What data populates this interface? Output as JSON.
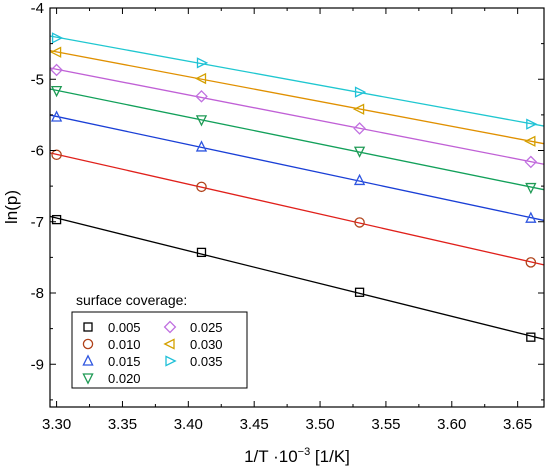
{
  "chart_data": {
    "type": "scatter",
    "xlabel_main": "1/T ·10",
    "xlabel_exp": "−3",
    "xlabel_unit": " [1/K]",
    "ylabel": "ln(p)",
    "xlim": [
      3.295,
      3.67
    ],
    "ylim": [
      -9.6,
      -4.0
    ],
    "x_ticks": [
      3.3,
      3.35,
      3.4,
      3.45,
      3.5,
      3.55,
      3.6,
      3.65
    ],
    "x_tick_labels": [
      "3.30",
      "3.35",
      "3.40",
      "3.45",
      "3.50",
      "3.55",
      "3.60",
      "3.65"
    ],
    "y_ticks": [
      -4,
      -5,
      -6,
      -7,
      -8,
      -9
    ],
    "y_tick_labels": [
      "-4",
      "-5",
      "-6",
      "-7",
      "-8",
      "-9"
    ],
    "grid": false,
    "legend": {
      "title": "surface coverage:",
      "placement": "bottom-left",
      "columns": 2
    },
    "x": [
      3.3,
      3.41,
      3.53,
      3.66
    ],
    "series": [
      {
        "name": "0.005",
        "marker": "square",
        "color": "#000000",
        "values": [
          -6.97,
          -7.43,
          -7.99,
          -8.62
        ]
      },
      {
        "name": "0.010",
        "marker": "circle",
        "color": "#e0201b",
        "marker_color": "#b0421a",
        "values": [
          -6.06,
          -6.51,
          -7.01,
          -7.57
        ]
      },
      {
        "name": "0.015",
        "marker": "triangle-up",
        "color": "#1a3fd6",
        "marker_color": "#2f56e0",
        "values": [
          -5.53,
          -5.95,
          -6.42,
          -6.95
        ]
      },
      {
        "name": "0.020",
        "marker": "triangle-down",
        "color": "#12a05a",
        "marker_color": "#1f9a55",
        "values": [
          -5.16,
          -5.57,
          -6.01,
          -6.52
        ]
      },
      {
        "name": "0.025",
        "marker": "diamond",
        "color": "#c060d6",
        "marker_color": "#c070e0",
        "values": [
          -4.87,
          -5.24,
          -5.69,
          -6.16
        ]
      },
      {
        "name": "0.030",
        "marker": "triangle-left",
        "color": "#e09000",
        "marker_color": "#d4a000",
        "values": [
          -4.62,
          -4.99,
          -5.42,
          -5.87
        ]
      },
      {
        "name": "0.035",
        "marker": "triangle-right",
        "color": "#1fc7d0",
        "marker_color": "#20c0d8",
        "values": [
          -4.42,
          -4.77,
          -5.18,
          -5.63
        ]
      }
    ]
  }
}
